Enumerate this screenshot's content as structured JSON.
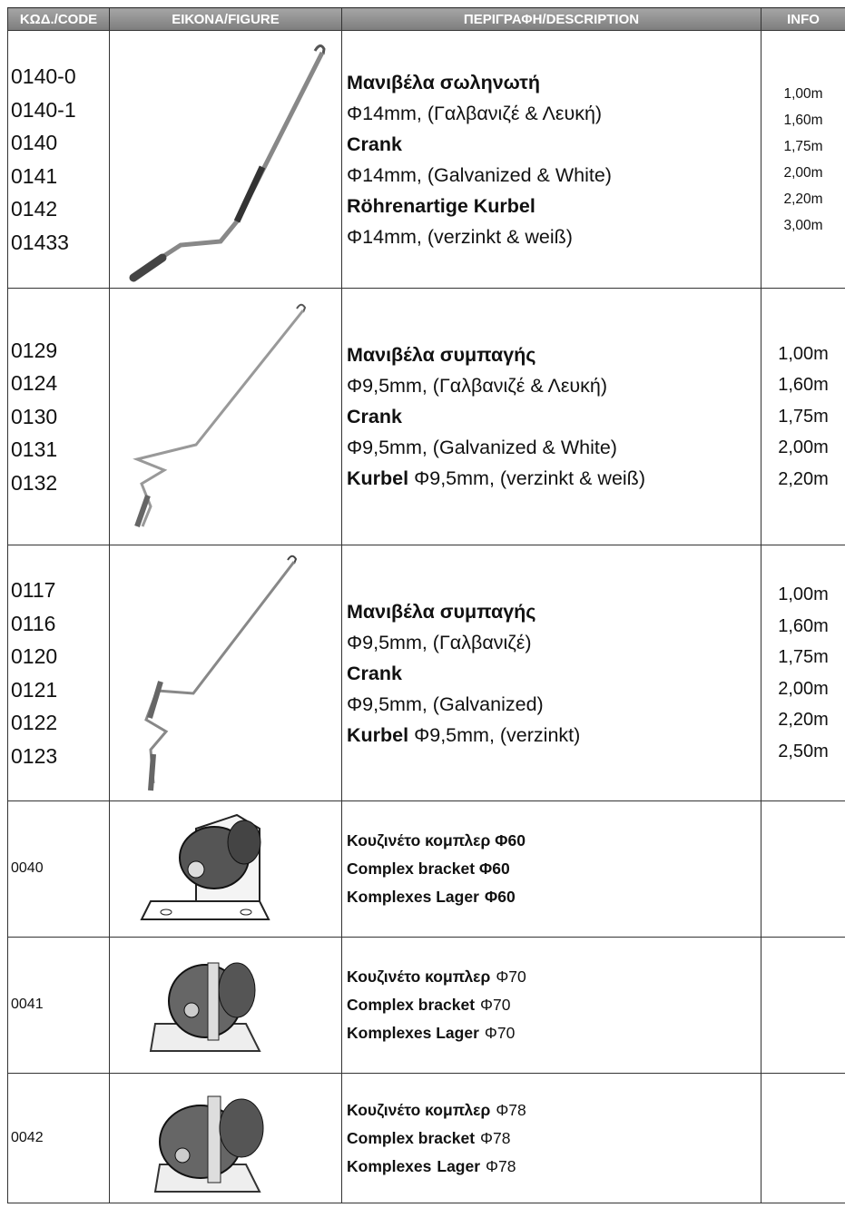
{
  "header": [
    "ΚΩΔ./CODE",
    "ΕΙΚΟΝΑ/FIGURE",
    "ΠΕΡΙΓΡΑΦΗ/DESCRIPTION",
    "INFO"
  ],
  "rows": [
    {
      "codes": [
        "0140-0",
        "0140-1",
        "0140",
        "0141",
        "0142",
        "01433"
      ],
      "description": [
        [
          {
            "text": "Μανιβέλα σωληνωτή",
            "bold": true
          }
        ],
        [
          {
            "text": "Φ14mm, (Γαλβανιζέ & Λευκή)",
            "bold": false
          }
        ],
        [
          {
            "text": "Crank",
            "bold": true
          }
        ],
        [
          {
            "text": "Φ14mm, (Galvanized & White)",
            "bold": false
          }
        ],
        [
          {
            "text": "Röhrenartige Kurbel",
            "bold": true
          }
        ],
        [
          {
            "text": "Φ14mm, (verzinkt & weiß)",
            "bold": false
          }
        ]
      ],
      "info": [
        "1,00m",
        "1,60m",
        "1,75m",
        "2,00m",
        "2,20m",
        "3,00m"
      ]
    },
    {
      "codes": [
        "0129",
        "0124",
        "0130",
        "0131",
        "0132"
      ],
      "description": [
        [
          {
            "text": "Μανιβέλα συμπαγής",
            "bold": true
          }
        ],
        [
          {
            "text": "Φ9,5mm, (Γαλβανιζέ & Λευκή)",
            "bold": false
          }
        ],
        [
          {
            "text": "Crank",
            "bold": true
          }
        ],
        [
          {
            "text": "Φ9,5mm, (Galvanized & White)",
            "bold": false
          }
        ],
        [
          {
            "text": "Kurbel",
            "bold": true
          },
          {
            "text": "Φ9,5mm, (verzinkt & weiß)",
            "bold": false
          }
        ]
      ],
      "info": [
        "1,00m",
        "1,60m",
        "1,75m",
        "2,00m",
        "2,20m"
      ]
    },
    {
      "codes": [
        "0117",
        "0116",
        "0120",
        "0121",
        "0122",
        "0123"
      ],
      "description": [
        [
          {
            "text": "Μανιβέλα συμπαγής",
            "bold": true
          }
        ],
        [
          {
            "text": "Φ9,5mm, (Γαλβανιζέ)",
            "bold": false
          }
        ],
        [
          {
            "text": "Crank",
            "bold": true
          }
        ],
        [
          {
            "text": "Φ9,5mm, (Galvanized)",
            "bold": false
          }
        ],
        [
          {
            "text": "Kurbel",
            "bold": true
          },
          {
            "text": "Φ9,5mm, (verzinkt)",
            "bold": false
          }
        ]
      ],
      "info": [
        "1,00m",
        "1,60m",
        "1,75m",
        "2,00m",
        "2,20m",
        "2,50m"
      ]
    },
    {
      "codes": [
        "0040"
      ],
      "description": [
        [
          {
            "text": "Κουζινέτο κομπλερ Φ60",
            "bold": true
          }
        ],
        [
          {
            "text": "Complex bracket Φ60",
            "bold": true
          }
        ],
        [
          {
            "text": "Komplexes Lager",
            "bold": true
          },
          {
            "text": "Φ60",
            "bold": true
          }
        ]
      ],
      "info": []
    },
    {
      "codes": [
        "0041"
      ],
      "description": [
        [
          {
            "text": "Κουζινέτο κομπλερ",
            "bold": true
          },
          {
            "text": "Φ70",
            "bold": false
          }
        ],
        [
          {
            "text": "Complex bracket",
            "bold": true
          },
          {
            "text": "Φ70",
            "bold": false
          }
        ],
        [
          {
            "text": "Komplexes Lager",
            "bold": true
          },
          {
            "text": "Φ70",
            "bold": false
          }
        ]
      ],
      "info": []
    },
    {
      "codes": [
        "0042"
      ],
      "description": [
        [
          {
            "text": "Κουζινέτο κομπλερ",
            "bold": true
          },
          {
            "text": "Φ78",
            "bold": false
          }
        ],
        [
          {
            "text": "Complex bracket",
            "bold": true
          },
          {
            "text": "Φ78",
            "bold": false
          }
        ],
        [
          {
            "text": "Komplexes",
            "bold": true
          },
          {
            "text": "Lager",
            "bold": true
          },
          {
            "text": "Φ78",
            "bold": false
          }
        ]
      ],
      "info": []
    }
  ]
}
